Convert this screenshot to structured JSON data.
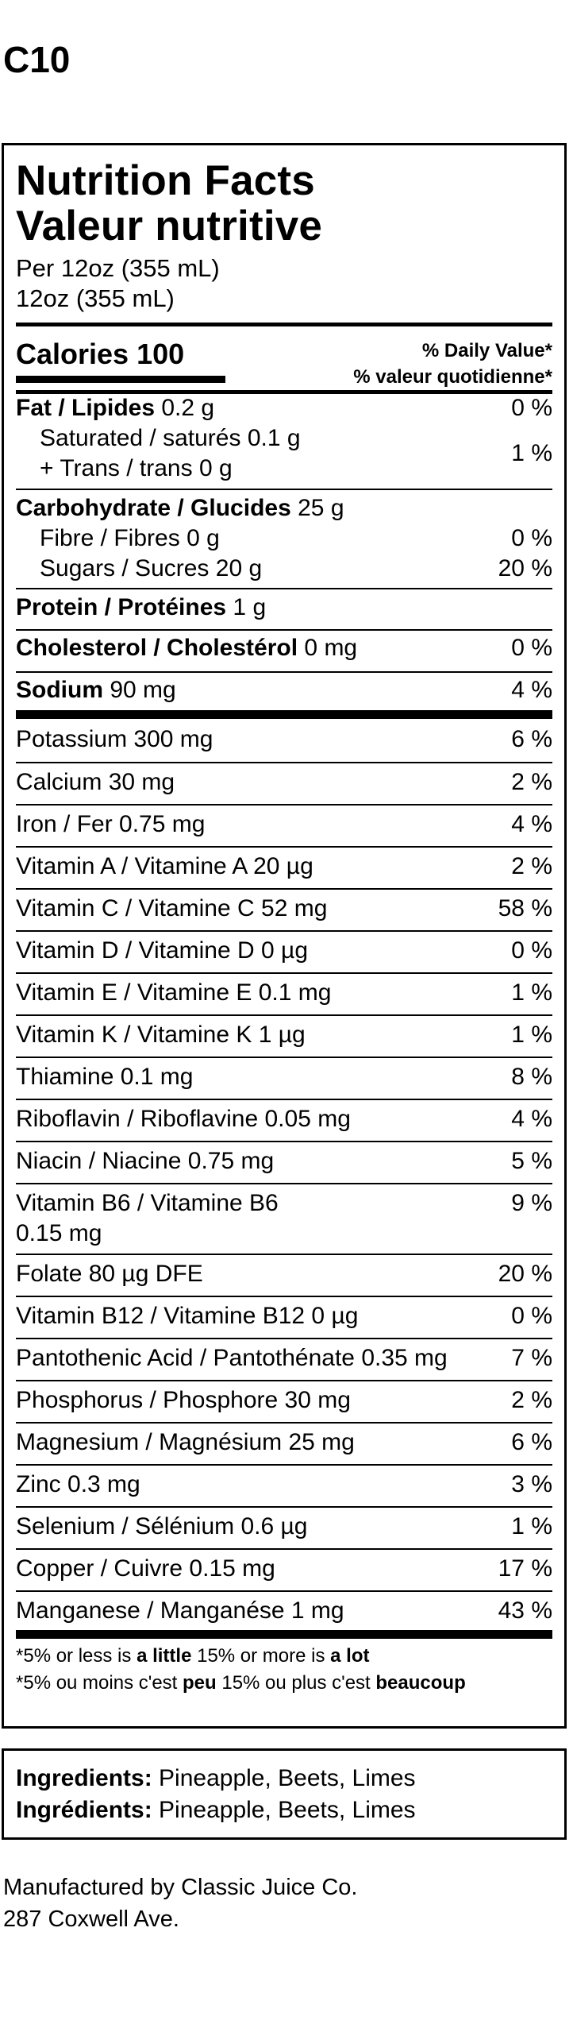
{
  "product_code": "C10",
  "title_en": "Nutrition Facts",
  "title_fr": "Valeur nutritive",
  "serving_per": "Per 12oz (355 mL)",
  "serving_size": "12oz (355 mL)",
  "calories_label": "Calories",
  "calories_value": "100",
  "dv_header_en": "% Daily Value*",
  "dv_header_fr": "% valeur quotidienne*",
  "fat": {
    "label": "Fat / Lipides",
    "amount": "0.2 g",
    "dv": "0 %"
  },
  "saturated": {
    "label": "Saturated / saturés",
    "amount": "0.1 g"
  },
  "trans": {
    "label": "+ Trans / trans",
    "amount": "0 g"
  },
  "fat_combined_dv": "1 %",
  "carbohydrate": {
    "label": "Carbohydrate / Glucides",
    "amount": "25 g"
  },
  "fibre": {
    "label": "Fibre / Fibres",
    "amount": "0 g",
    "dv": "0 %"
  },
  "sugars": {
    "label": "Sugars / Sucres",
    "amount": "20 g",
    "dv": "20 %"
  },
  "protein": {
    "label": "Protein / Protéines",
    "amount": "1 g"
  },
  "cholesterol": {
    "label": "Cholesterol / Cholestérol",
    "amount": "0 mg",
    "dv": "0 %"
  },
  "sodium": {
    "label": "Sodium",
    "amount": "90 mg",
    "dv": "4 %"
  },
  "micros": [
    {
      "text": "Potassium 300 mg",
      "dv": "6 %"
    },
    {
      "text": "Calcium 30 mg",
      "dv": "2 %"
    },
    {
      "text": "Iron / Fer 0.75 mg",
      "dv": "4 %"
    },
    {
      "text": "Vitamin A / Vitamine A 20 µg",
      "dv": "2 %"
    },
    {
      "text": "Vitamin C / Vitamine C 52 mg",
      "dv": "58 %"
    },
    {
      "text": "Vitamin D / Vitamine D 0 µg",
      "dv": "0 %"
    },
    {
      "text": "Vitamin E / Vitamine E 0.1 mg",
      "dv": "1 %"
    },
    {
      "text": "Vitamin K / Vitamine K 1 µg",
      "dv": "1 %"
    },
    {
      "text": "Thiamine 0.1 mg",
      "dv": "8 %"
    },
    {
      "text": "Riboflavin / Riboflavine 0.05 mg",
      "dv": "4 %"
    },
    {
      "text": "Niacin / Niacine 0.75 mg",
      "dv": "5 %"
    },
    {
      "text": "Vitamin B6 / Vitamine B6",
      "text2": "0.15 mg",
      "dv": "9 %"
    },
    {
      "text": "Folate 80 µg DFE",
      "dv": "20 %"
    },
    {
      "text": "Vitamin B12 / Vitamine B12 0 µg",
      "dv": "0 %"
    },
    {
      "text": "Pantothenic Acid / Pantothénate 0.35 mg",
      "dv": "7 %"
    },
    {
      "text": "Phosphorus / Phosphore 30 mg",
      "dv": "2 %"
    },
    {
      "text": "Magnesium / Magnésium 25 mg",
      "dv": "6 %"
    },
    {
      "text": "Zinc 0.3 mg",
      "dv": "3 %"
    },
    {
      "text": "Selenium / Sélénium 0.6 µg",
      "dv": "1 %"
    },
    {
      "text": "Copper / Cuivre 0.15 mg",
      "dv": "17 %"
    },
    {
      "text": "Manganese / Manganése 1 mg",
      "dv": "43 %"
    }
  ],
  "footnote_en": {
    "a": "*5% or less is ",
    "b": "a little",
    "c": " 15% or more is ",
    "d": "a lot"
  },
  "footnote_fr": {
    "a": "*5% ou moins c'est ",
    "b": "peu",
    "c": " 15% ou plus c'est ",
    "d": "beaucoup"
  },
  "ingredients_label_en": "Ingredients:",
  "ingredients_label_fr": "Ingrédients:",
  "ingredients_text": "Pineapple, Beets, Limes",
  "manufacturer_line1": "Manufactured by Classic Juice Co.",
  "manufacturer_line2": "287 Coxwell Ave."
}
